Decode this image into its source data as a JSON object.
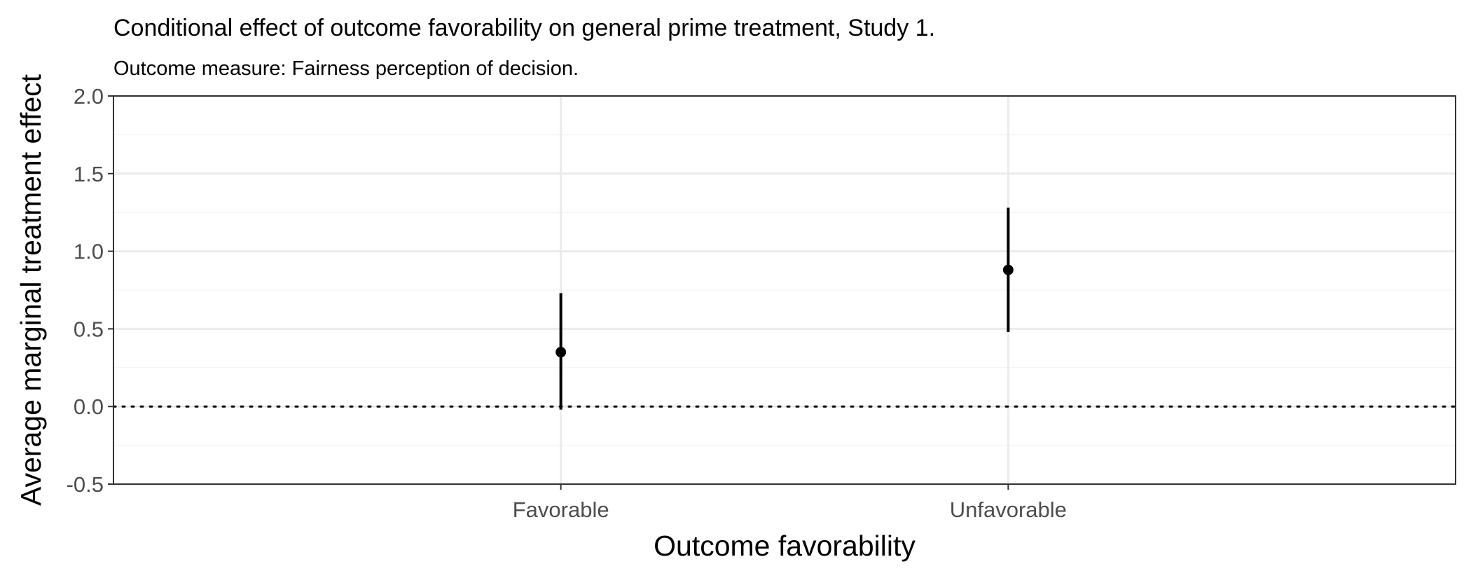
{
  "chart_data": {
    "type": "scatter",
    "title": "Conditional effect of outcome favorability on general prime treatment, Study 1.",
    "subtitle": "Outcome measure: Fairness perception of decision.",
    "xlabel": "Outcome favorability",
    "ylabel": "Average marginal treatment effect",
    "categories": [
      "Favorable",
      "Unfavorable"
    ],
    "values": [
      0.35,
      0.88
    ],
    "ci_lower": [
      -0.02,
      0.48
    ],
    "ci_upper": [
      0.73,
      1.28
    ],
    "ylim": [
      -0.5,
      2.0
    ],
    "yticks": [
      "-0.5",
      "0.0",
      "0.5",
      "1.0",
      "1.5",
      "2.0"
    ],
    "reference_line": 0,
    "grid": true,
    "colors": {
      "point": "#000000",
      "panel_border": "#333333",
      "grid_major": "#ebebeb",
      "grid_minor": "#f5f5f5",
      "tick_label": "#4d4d4d"
    }
  }
}
